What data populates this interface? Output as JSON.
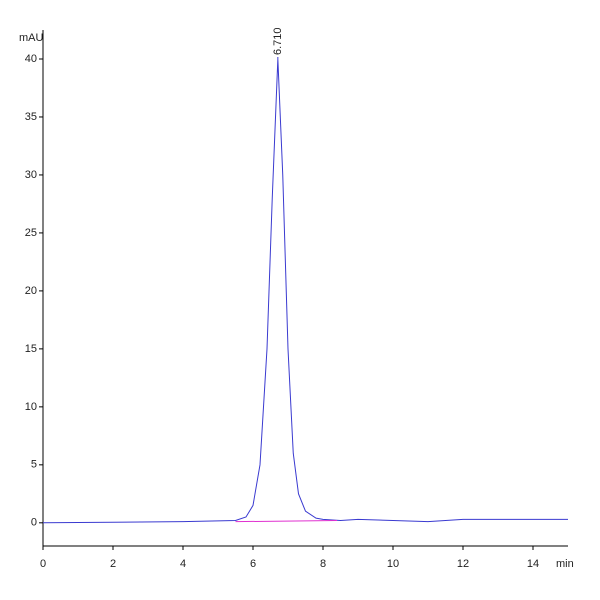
{
  "chart_data": {
    "type": "line",
    "y_label": "mAU",
    "x_label": "min",
    "xlim": [
      0,
      15
    ],
    "xticks": [
      0,
      2,
      4,
      6,
      8,
      10,
      12,
      14
    ],
    "ylim": [
      -2,
      42.5
    ],
    "yticks": [
      0,
      5,
      10,
      15,
      20,
      25,
      30,
      35,
      40
    ],
    "series": [
      {
        "color": "#3a3ad0",
        "x": [
          0,
          2,
          4,
          5.5,
          5.8,
          6.0,
          6.2,
          6.4,
          6.55,
          6.71,
          6.85,
          7.0,
          7.15,
          7.3,
          7.5,
          7.8,
          8.0,
          8.5,
          9,
          10,
          11,
          12,
          13,
          14,
          15
        ],
        "values": [
          0,
          0.05,
          0.1,
          0.2,
          0.5,
          1.5,
          5,
          15,
          28,
          40,
          30,
          15,
          6,
          2.5,
          1,
          0.4,
          0.3,
          0.2,
          0.3,
          0.2,
          0.1,
          0.3,
          0.3,
          0.3,
          0.3
        ]
      },
      {
        "color": "#e030d0",
        "x": [
          5.5,
          8.4
        ],
        "values": [
          0.1,
          0.2
        ]
      }
    ],
    "annotations": [
      {
        "text": "6.710",
        "x": 6.71,
        "y": 40
      }
    ]
  }
}
